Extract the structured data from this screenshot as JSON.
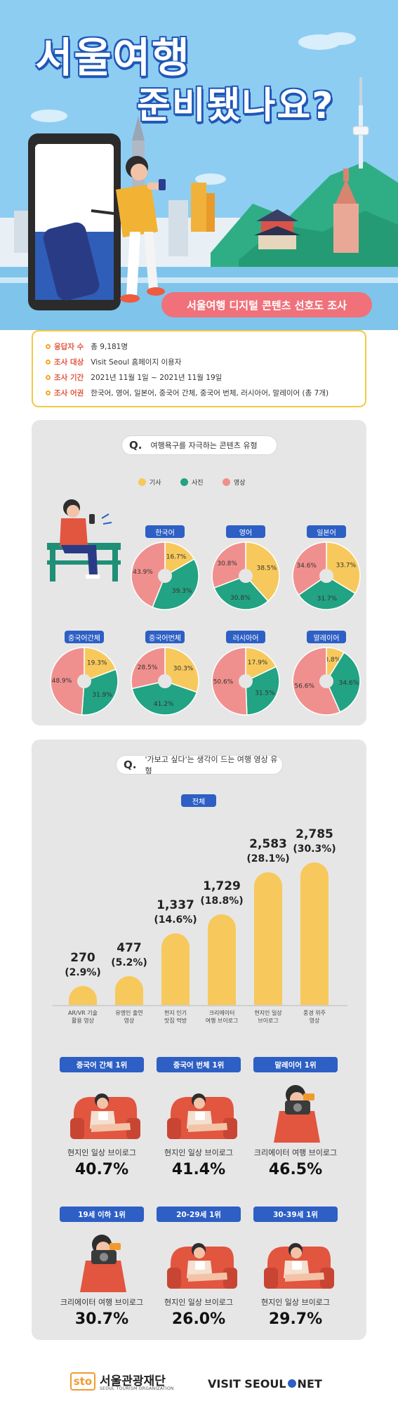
{
  "header": {
    "title_line1": "서울여행",
    "title_line2": "준비됐나요?",
    "subtitle": "서울여행 디지털 콘텐츠 선호도 조사"
  },
  "survey_info": [
    {
      "label": "응답자 수",
      "value": "총 9,181명"
    },
    {
      "label": "조사 대상",
      "value": "Visit Seoul 홈페이지 이용자"
    },
    {
      "label": "조사 기간",
      "value": "2021년 11월 1일 ~ 2021년 11월 19일"
    },
    {
      "label": "조사 어권",
      "value": "한국어, 영어, 일본어, 중국어 간체, 중국어 번체, 러시아어, 말레이어 (총 7개)"
    }
  ],
  "section1": {
    "q_letter": "Q.",
    "question": "여행욕구를 자극하는 콘텐츠 유형",
    "legend": [
      {
        "name": "기사",
        "color": "#f7c95c"
      },
      {
        "name": "사진",
        "color": "#22a383"
      },
      {
        "name": "영상",
        "color": "#f0908e"
      }
    ]
  },
  "chart_data": [
    {
      "type": "pie",
      "series_names": [
        "기사",
        "사진",
        "영상"
      ],
      "charts": [
        {
          "name": "한국어",
          "values": [
            16.7,
            39.3,
            43.9
          ],
          "labels": [
            "16.7%",
            "39.3%",
            "43.9%"
          ]
        },
        {
          "name": "영어",
          "values": [
            38.5,
            30.8,
            30.8
          ],
          "labels": [
            "38.5%",
            "30.8%",
            "30.8%"
          ]
        },
        {
          "name": "일본어",
          "values": [
            33.7,
            31.7,
            34.6
          ],
          "labels": [
            "33.7%",
            "31.7%",
            "34.6%"
          ]
        },
        {
          "name": "중국어간체",
          "values": [
            19.3,
            31.9,
            48.9
          ],
          "labels": [
            "19.3%",
            "31.9%",
            "48.9%"
          ]
        },
        {
          "name": "중국어번체",
          "values": [
            30.3,
            41.2,
            28.5
          ],
          "labels": [
            "30.3%",
            "41.2%",
            "28.5%"
          ]
        },
        {
          "name": "러시아어",
          "values": [
            17.9,
            31.5,
            50.6
          ],
          "labels": [
            "17.9%",
            "31.5%",
            "50.6%"
          ]
        },
        {
          "name": "말레이어",
          "values": [
            8.8,
            34.6,
            56.6
          ],
          "labels": [
            "8.8%",
            "34.6%",
            "56.6%"
          ]
        }
      ]
    },
    {
      "type": "bar",
      "title": "전체",
      "categories": [
        "AR/VR 기술\n활용 영상",
        "유명인 출연\n영상",
        "현지 인기\n맛집 먹방",
        "크리에이터\n여행 브이로그",
        "현지인 일상\n브이로그",
        "풍경 위주\n영상"
      ],
      "values": [
        270,
        477,
        1337,
        1729,
        2583,
        2785
      ],
      "value_labels": [
        "270",
        "477",
        "1,337",
        "1,729",
        "2,583",
        "2,785"
      ],
      "percent_labels": [
        "(2.9%)",
        "(5.2%)",
        "(14.6%)",
        "(18.8%)",
        "(28.1%)",
        "(30.3%)"
      ],
      "bar_color": "#f7c95c"
    }
  ],
  "section2": {
    "q_letter": "Q.",
    "question": "'가보고 싶다'는 생각이 드는 여행 영상 유형",
    "chart_tag": "전체"
  },
  "rankings": [
    {
      "tag": "중국어 간체 1위",
      "desc": "현지인 일상 브이로그",
      "pct": "40.7%"
    },
    {
      "tag": "중국어 번체 1위",
      "desc": "현지인 일상 브이로그",
      "pct": "41.4%"
    },
    {
      "tag": "말레이어 1위",
      "desc": "크리에이터 여행 브이로그",
      "pct": "46.5%"
    },
    {
      "tag": "19세 이하 1위",
      "desc": "크리에이터 여행 브이로그",
      "pct": "30.7%"
    },
    {
      "tag": "20-29세 1위",
      "desc": "현지인 일상 브이로그",
      "pct": "26.0%"
    },
    {
      "tag": "30-39세 1위",
      "desc": "현지인 일상 브이로그",
      "pct": "29.7%"
    }
  ],
  "footer": {
    "org_mark": "sto",
    "org_name": "서울관광재단",
    "org_name_en": "SEOUL TOURISM ORGANIZATION",
    "brand_left": "VISIT SEOUL",
    "brand_right": "NET"
  }
}
